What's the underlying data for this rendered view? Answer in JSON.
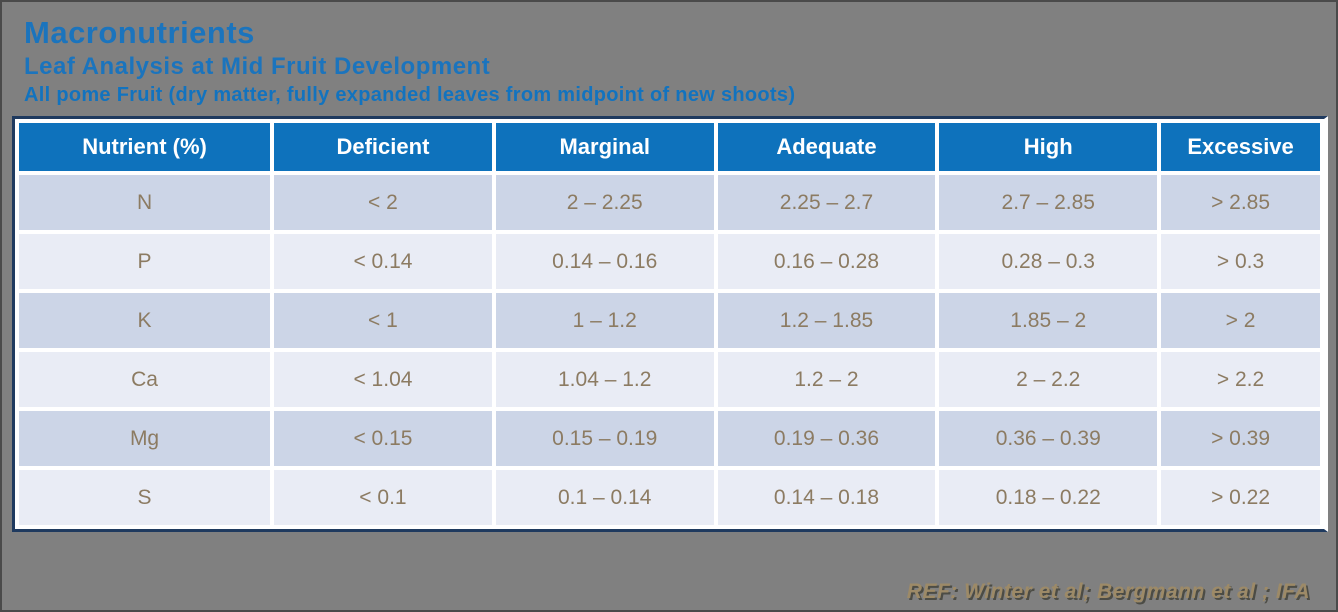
{
  "page": {
    "title": "Macronutrients",
    "subtitle": "Leaf Analysis at Mid Fruit Development",
    "note": "All pome Fruit (dry matter, fully expanded leaves from midpoint of new shoots)",
    "reference": "REF: Winter et al; Bergmann et al ; IFA"
  },
  "colors": {
    "background": "#808080",
    "title_blue": "#1B74BD",
    "header_blue": "#0E72BC",
    "table_border_navy": "#1F3A5F",
    "row_dark": "#CCD5E7",
    "row_light": "#E9ECF5",
    "cell_text": "#8C7B62",
    "reference_text": "#9D8A67"
  },
  "table": {
    "headers": [
      "Nutrient (%)",
      "Deficient",
      "Marginal",
      "Adequate",
      "High",
      "Excessive"
    ],
    "rows": [
      [
        "N",
        "< 2",
        "2 – 2.25",
        "2.25 – 2.7",
        "2.7 – 2.85",
        "> 2.85"
      ],
      [
        "P",
        "< 0.14",
        "0.14 – 0.16",
        "0.16 – 0.28",
        "0.28 – 0.3",
        "> 0.3"
      ],
      [
        "K",
        "< 1",
        "1 – 1.2",
        "1.2 – 1.85",
        "1.85 – 2",
        "> 2"
      ],
      [
        "Ca",
        "< 1.04",
        "1.04 – 1.2",
        "1.2 – 2",
        "2 – 2.2",
        "> 2.2"
      ],
      [
        "Mg",
        "< 0.15",
        "0.15 – 0.19",
        "0.19 – 0.36",
        "0.36 – 0.39",
        "> 0.39"
      ],
      [
        "S",
        "< 0.1",
        "0.1 – 0.14",
        "0.14 – 0.18",
        "0.18 – 0.22",
        "> 0.22"
      ]
    ]
  }
}
